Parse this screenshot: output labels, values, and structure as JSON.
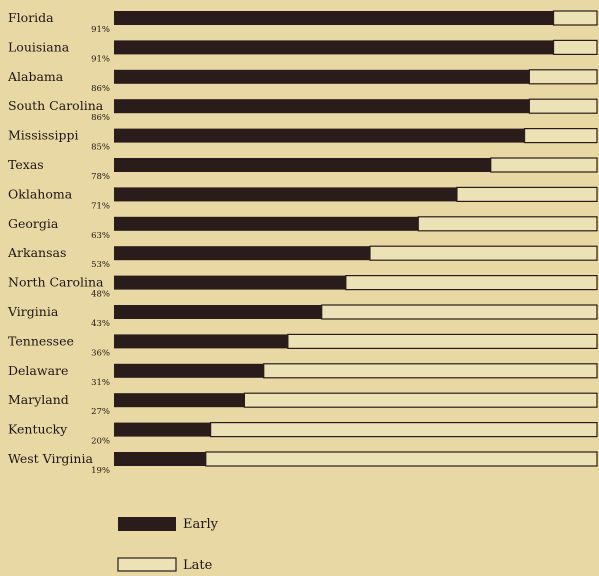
{
  "chart_data": {
    "type": "bar",
    "orientation": "horizontal",
    "stacked": true,
    "title": "",
    "xlabel": "",
    "ylabel": "",
    "xlim": [
      0,
      100
    ],
    "categories": [
      "Florida",
      "Louisiana",
      "Alabama",
      "South Carolina",
      "Mississippi",
      "Texas",
      "Oklahoma",
      "Georgia",
      "Arkansas",
      "North Carolina",
      "Virginia",
      "Tennessee",
      "Delaware",
      "Maryland",
      "Kentucky",
      "West Virginia"
    ],
    "percent_labels": [
      "91%",
      "91%",
      "86%",
      "86%",
      "85%",
      "78%",
      "71%",
      "63%",
      "53%",
      "48%",
      "43%",
      "36%",
      "31%",
      "27%",
      "20%",
      "19%"
    ],
    "series": [
      {
        "name": "Early",
        "values": [
          91,
          91,
          86,
          86,
          85,
          78,
          71,
          63,
          53,
          48,
          43,
          36,
          31,
          27,
          20,
          19
        ]
      },
      {
        "name": "Late",
        "values": [
          9,
          9,
          14,
          14,
          15,
          22,
          29,
          37,
          47,
          52,
          57,
          64,
          69,
          73,
          80,
          81
        ]
      }
    ],
    "legend": {
      "placement": "bottom-left",
      "entries": [
        "Early",
        "Late"
      ]
    },
    "colors": {
      "early": "#2a1c1a",
      "late": "#ede2b5",
      "outline": "#2a1c1a",
      "background": "#e8d9a4"
    }
  }
}
